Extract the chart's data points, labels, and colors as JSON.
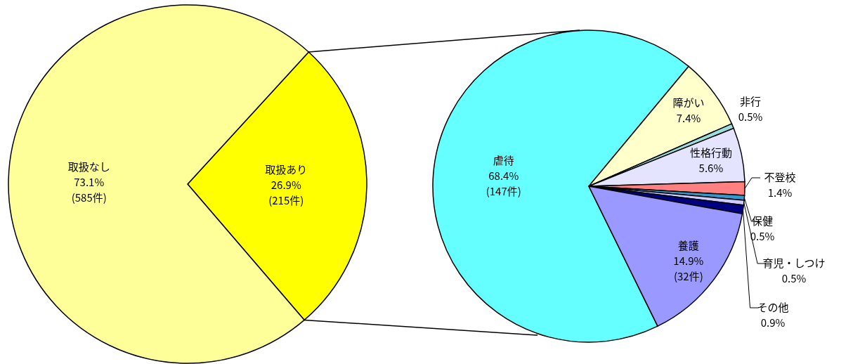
{
  "chart_data": [
    {
      "type": "pie",
      "categories": [
        "取扱あり",
        "取扱なし"
      ],
      "values": [
        26.9,
        73.1
      ],
      "colors": [
        "#ffff00",
        "#ffff99"
      ],
      "value_labels": [
        "26.9%\n(215件)",
        "73.1%\n(585件)"
      ]
    },
    {
      "type": "pie",
      "categories": [
        "虐待",
        "障がい",
        "非行",
        "性格行動",
        "不登校",
        "保健",
        "育児・しつけ",
        "その他",
        "養護"
      ],
      "values": [
        68.4,
        7.4,
        0.5,
        5.6,
        1.4,
        0.5,
        0.5,
        0.9,
        14.9
      ],
      "colors": [
        "#66ffff",
        "#ffffcc",
        "#99dddd",
        "#e4e4ff",
        "#ff8080",
        "#3399cc",
        "#ccccff",
        "#000080",
        "#9999ff"
      ],
      "value_labels": [
        "68.4%\n(147件)",
        "7.4%",
        "0.5%",
        "5.6%",
        "1.4%",
        "0.5%",
        "0.5%",
        "0.9%",
        "14.9%\n(32件)"
      ]
    }
  ]
}
